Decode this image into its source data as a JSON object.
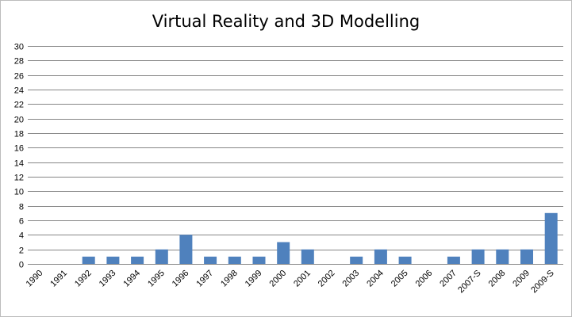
{
  "chart_data": {
    "type": "bar",
    "title": "Virtual Reality and 3D Modelling",
    "xlabel": "",
    "ylabel": "",
    "categories": [
      "1990",
      "1991",
      "1992",
      "1993",
      "1994",
      "1995",
      "1996",
      "1997",
      "1998",
      "1999",
      "2000",
      "2001",
      "2002",
      "2003",
      "2004",
      "2005",
      "2006",
      "2007",
      "2007-S",
      "2008",
      "2009",
      "2009-S"
    ],
    "values": [
      0,
      0,
      1,
      1,
      1,
      2,
      4,
      1,
      1,
      1,
      3,
      2,
      0,
      1,
      2,
      1,
      0,
      1,
      2,
      2,
      2,
      7
    ],
    "ylim": [
      0,
      30
    ],
    "yticks": [
      0,
      2,
      4,
      6,
      8,
      10,
      12,
      14,
      16,
      18,
      20,
      22,
      24,
      26,
      28,
      30
    ],
    "grid": true,
    "legend": "none",
    "bar_color": "#4f81bd"
  }
}
